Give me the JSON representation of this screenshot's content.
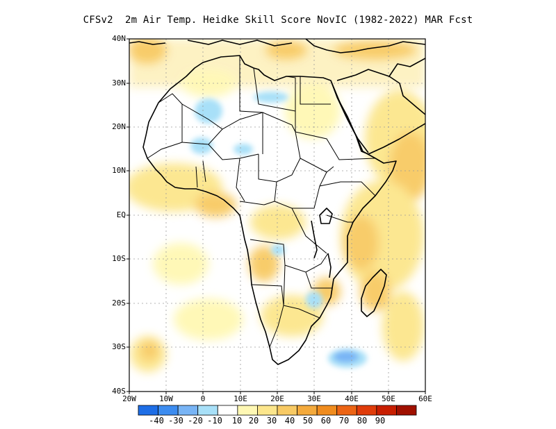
{
  "title": "CFSv2  2m Air Temp. Heidke Skill Score NovIC (1982-2022) MAR Fcst",
  "map": {
    "region": "Africa",
    "lon_range": [
      -20,
      60
    ],
    "lat_range": [
      -40,
      40
    ],
    "grid": true,
    "lat_labels": [
      "40N",
      "30N",
      "20N",
      "10N",
      "EQ",
      "10S",
      "20S",
      "30S",
      "40S"
    ],
    "lon_labels": [
      "20W",
      "10W",
      "0",
      "10E",
      "20E",
      "30E",
      "40E",
      "50E",
      "60E"
    ]
  },
  "colorbar": {
    "colors": [
      "#1e6ee6",
      "#3c8cf0",
      "#78b4f5",
      "#a8e0f8",
      "#ffffff",
      "#fff8b4",
      "#fce68c",
      "#f8ca64",
      "#f4aa3c",
      "#f08c1e",
      "#ec6414",
      "#e03c0a",
      "#c81e00",
      "#a01000"
    ],
    "labels": [
      "-40",
      "-30",
      "-20",
      "-10",
      "10",
      "20",
      "30",
      "40",
      "50",
      "60",
      "70",
      "80",
      "90"
    ]
  }
}
